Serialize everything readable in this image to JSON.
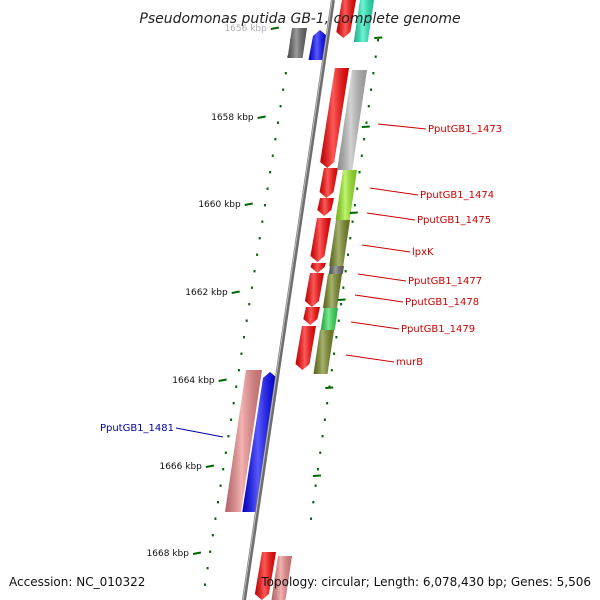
{
  "title": "Pseudomonas putida GB-1, complete genome",
  "accession": "Accession: NC_010322",
  "topology": "Topology: circular; Length: 6,078,430 bp; Genes: 5,506",
  "ticks": [
    {
      "label": "1656 kbp",
      "faded": true
    },
    {
      "label": "1658 kbp"
    },
    {
      "label": "1660 kbp"
    },
    {
      "label": "1662 kbp"
    },
    {
      "label": "1664 kbp"
    },
    {
      "label": "1666 kbp"
    },
    {
      "label": "1668 kbp"
    }
  ],
  "gene_labels": [
    {
      "text": "PputGB1_1473",
      "strand": "forward"
    },
    {
      "text": "PputGB1_1474",
      "strand": "forward"
    },
    {
      "text": "PputGB1_1475",
      "strand": "forward"
    },
    {
      "text": "lpxK",
      "strand": "forward"
    },
    {
      "text": "PputGB1_1477",
      "strand": "forward"
    },
    {
      "text": "PputGB1_1478",
      "strand": "forward"
    },
    {
      "text": "PputGB1_1479",
      "strand": "forward"
    },
    {
      "text": "murB",
      "strand": "forward"
    },
    {
      "text": "PputGB1_1481",
      "strand": "reverse"
    }
  ],
  "colors": {
    "forward_label": "#cc0000",
    "reverse_label": "#0000aa",
    "backbone": "#808080",
    "tick": "#006600",
    "cds_forward": "#ff0000",
    "cds_reverse": "#0000ff",
    "cog_grey": "#bbbbbb",
    "cog_lime": "#99ee22",
    "cog_olive": "#778822",
    "cog_green": "#33dd55",
    "cog_pink": "#ee8888",
    "cog_teal": "#22eebb",
    "cog_darkgrey": "#666666"
  }
}
